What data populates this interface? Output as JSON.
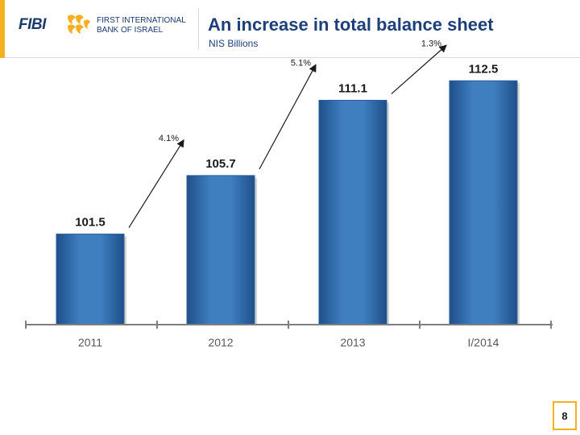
{
  "header": {
    "logo_wordmark": "FIBI",
    "logo_line1": "FIRST INTERNATIONAL",
    "logo_line2": "BANK OF ISRAEL",
    "title": "An increase in total balance sheet",
    "subtitle": "NIS Billions"
  },
  "colors": {
    "accent": "#f4b01e",
    "bar": "#3f7fc0",
    "bar_dark": "#1f4f8a",
    "title": "#1d3f7a"
  },
  "chart_data": {
    "type": "bar",
    "title": "An increase in total balance sheet",
    "subtitle": "NIS Billions",
    "categories": [
      "2011",
      "2012",
      "2013",
      "I/2014"
    ],
    "values": [
      101.5,
      105.7,
      111.1,
      112.5
    ],
    "value_labels": [
      "101.5",
      "105.7",
      "111.1",
      "112.5"
    ],
    "growth_annotations": [
      "4.1%",
      "5.1%",
      "1.3%"
    ],
    "grid": false,
    "legend": "none"
  },
  "page_number": "8"
}
